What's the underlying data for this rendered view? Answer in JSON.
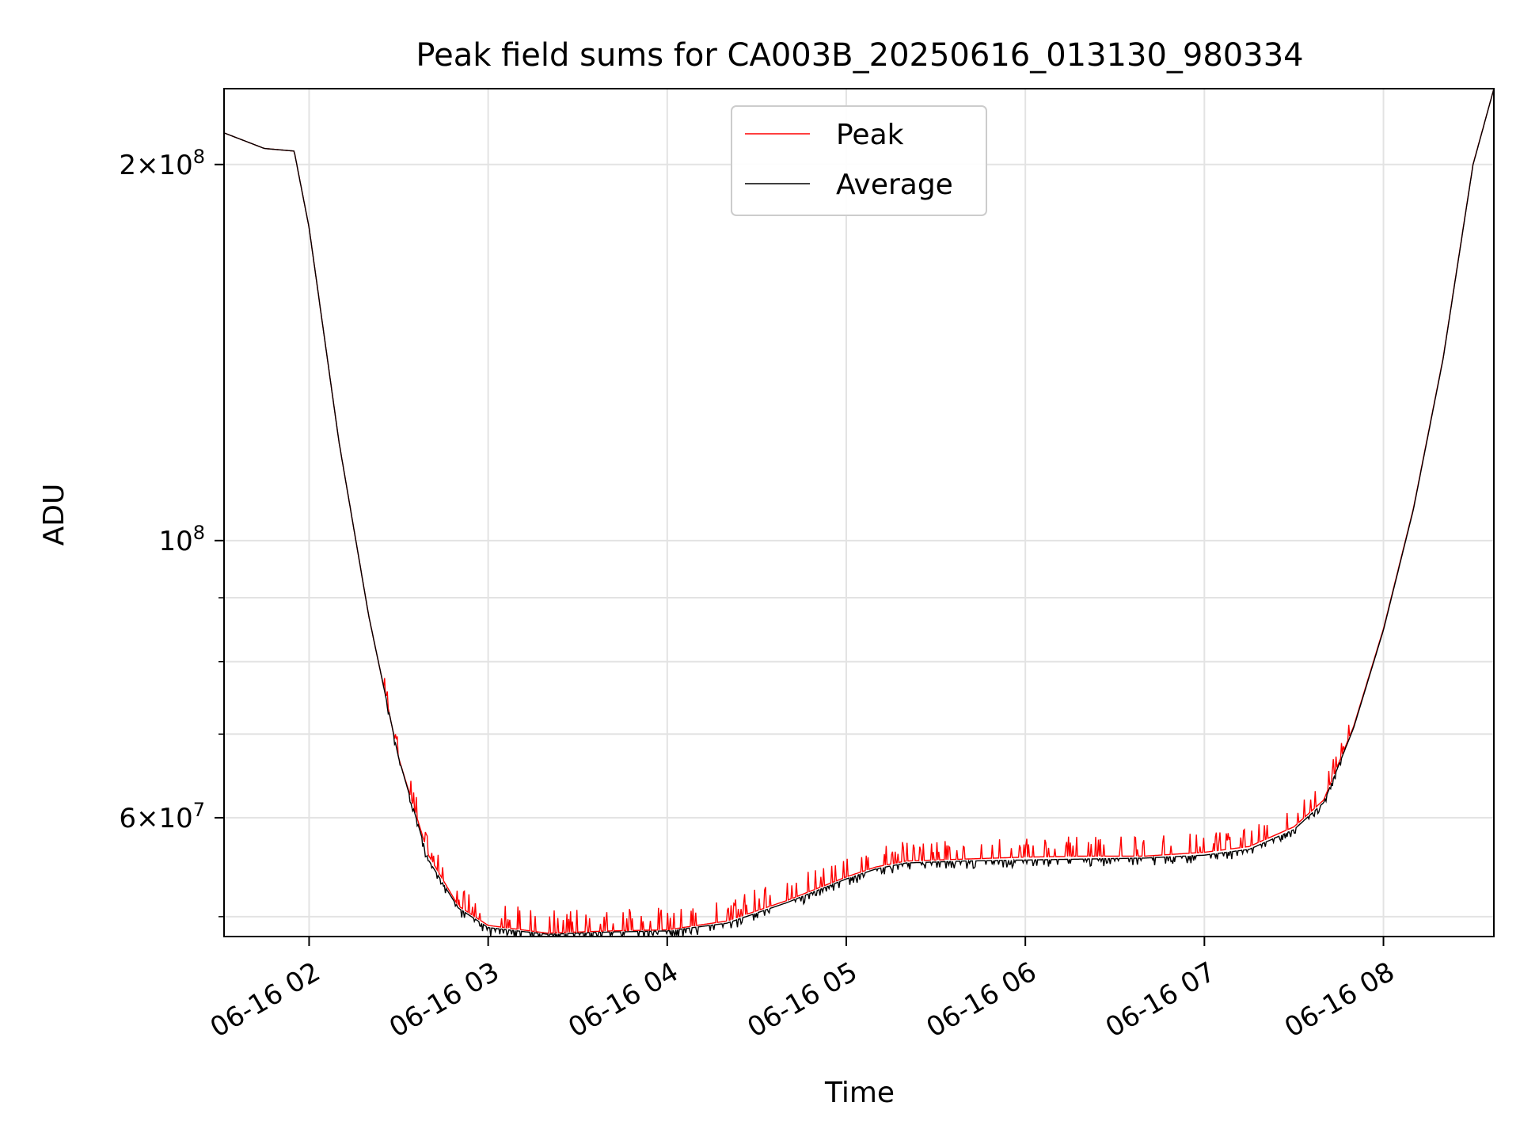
{
  "chart_data": {
    "type": "line",
    "title": "Peak field sums for CA003B_20250616_013130_980334",
    "xlabel": "Time",
    "ylabel": "ADU",
    "yscale": "log",
    "xlim": [
      "2025-06-16T01:31:30",
      "2025-06-16T08:37:00"
    ],
    "ylim": [
      48200000,
      230000000
    ],
    "grid": true,
    "legend": {
      "placement": "top-center",
      "entries": [
        "Peak",
        "Average"
      ]
    },
    "x_ticks": [
      "06-16 02",
      "06-16 03",
      "06-16 04",
      "06-16 05",
      "06-16 06",
      "06-16 07",
      "06-16 08"
    ],
    "x_tick_times": [
      "2025-06-16T02:00",
      "2025-06-16T03:00",
      "2025-06-16T04:00",
      "2025-06-16T05:00",
      "2025-06-16T06:00",
      "2025-06-16T07:00",
      "2025-06-16T08:00"
    ],
    "y_ticks": [
      {
        "value": 200000000,
        "mant": "2",
        "exp": "8"
      },
      {
        "value": 100000000,
        "mant": "",
        "exp": "8"
      },
      {
        "value": 60000000,
        "mant": "6",
        "exp": "7"
      }
    ],
    "y_minor_ticks": [
      50000000,
      70000000,
      80000000,
      90000000
    ],
    "series": [
      {
        "name": "Peak",
        "color": "#ff0000",
        "noise_up": 1500000,
        "x": [
          "2025-06-16T01:31:30",
          "2025-06-16T01:45",
          "2025-06-16T01:55",
          "2025-06-16T02:00",
          "2025-06-16T02:10",
          "2025-06-16T02:20",
          "2025-06-16T02:30",
          "2025-06-16T02:40",
          "2025-06-16T02:50",
          "2025-06-16T03:00",
          "2025-06-16T03:20",
          "2025-06-16T03:40",
          "2025-06-16T04:00",
          "2025-06-16T04:20",
          "2025-06-16T04:40",
          "2025-06-16T05:00",
          "2025-06-16T05:10",
          "2025-06-16T05:20",
          "2025-06-16T05:40",
          "2025-06-16T06:00",
          "2025-06-16T06:20",
          "2025-06-16T06:40",
          "2025-06-16T07:00",
          "2025-06-16T07:15",
          "2025-06-16T07:30",
          "2025-06-16T07:40",
          "2025-06-16T07:50",
          "2025-06-16T08:00",
          "2025-06-16T08:10",
          "2025-06-16T08:20",
          "2025-06-16T08:30",
          "2025-06-16T08:37"
        ],
        "y": [
          212000000,
          206000000,
          205000000,
          178000000,
          120000000,
          87000000,
          67000000,
          56000000,
          51000000,
          49200000,
          48500000,
          48700000,
          48800000,
          49600000,
          51500000,
          53800000,
          54800000,
          55400000,
          55600000,
          55800000,
          55900000,
          55900000,
          56300000,
          56900000,
          59000000,
          62000000,
          71000000,
          85000000,
          106000000,
          140000000,
          200000000,
          230000000
        ]
      },
      {
        "name": "Average",
        "color": "#000000",
        "noise_down": 600000,
        "x": [
          "2025-06-16T01:31:30",
          "2025-06-16T01:45",
          "2025-06-16T01:55",
          "2025-06-16T02:00",
          "2025-06-16T02:10",
          "2025-06-16T02:20",
          "2025-06-16T02:30",
          "2025-06-16T02:40",
          "2025-06-16T02:50",
          "2025-06-16T03:00",
          "2025-06-16T03:20",
          "2025-06-16T03:40",
          "2025-06-16T04:00",
          "2025-06-16T04:20",
          "2025-06-16T04:40",
          "2025-06-16T05:00",
          "2025-06-16T05:10",
          "2025-06-16T05:20",
          "2025-06-16T05:40",
          "2025-06-16T06:00",
          "2025-06-16T06:20",
          "2025-06-16T06:40",
          "2025-06-16T07:00",
          "2025-06-16T07:15",
          "2025-06-16T07:30",
          "2025-06-16T07:40",
          "2025-06-16T07:50",
          "2025-06-16T08:00",
          "2025-06-16T08:10",
          "2025-06-16T08:20",
          "2025-06-16T08:30",
          "2025-06-16T08:37"
        ],
        "y": [
          212000000,
          206000000,
          205000000,
          178000000,
          120000000,
          87000000,
          67000000,
          55500000,
          50800000,
          49000000,
          48400000,
          48600000,
          48700000,
          49400000,
          51300000,
          53600000,
          54600000,
          55200000,
          55400000,
          55500000,
          55600000,
          55700000,
          56000000,
          56600000,
          58700000,
          61700000,
          70800000,
          84800000,
          105800000,
          139800000,
          199800000,
          230000000
        ]
      }
    ]
  }
}
